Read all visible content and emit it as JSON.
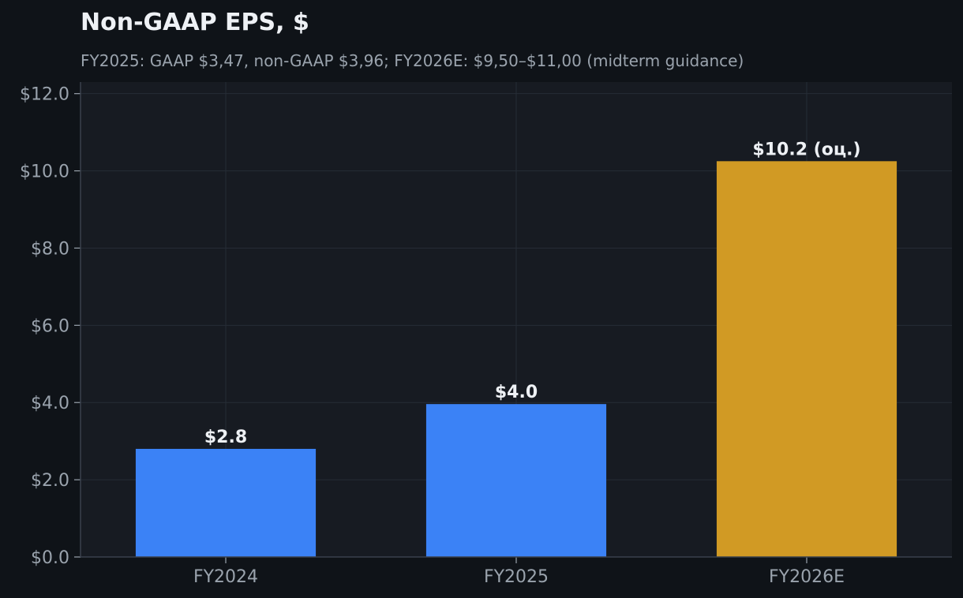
{
  "chart_data": {
    "type": "bar",
    "title": "Non-GAAP EPS, $",
    "subtitle": "FY2025: GAAP $3,47, non-GAAP $3,96; FY2026E: $9,50–$11,00 (midterm guidance)",
    "categories": [
      "FY2024",
      "FY2025",
      "FY2026E"
    ],
    "values": [
      2.8,
      3.96,
      10.25
    ],
    "bar_labels": [
      "$2.8",
      "$4.0",
      "$10.2 (оц.)"
    ],
    "bar_colors": [
      "#3b82f6",
      "#3b82f6",
      "#d19a24"
    ],
    "ylim": [
      0,
      12.3
    ],
    "yticks": [
      0,
      2,
      4,
      6,
      8,
      10,
      12
    ],
    "ytick_labels": [
      "$0.0",
      "$2.0",
      "$4.0",
      "$6.0",
      "$8.0",
      "$10.0",
      "$12.0"
    ],
    "grid": true,
    "xlabel": "",
    "ylabel": ""
  },
  "colors": {
    "page_background": "#0f1318",
    "plot_background": "#171b22",
    "grid": "#262c36",
    "axis": "#3a414c"
  }
}
